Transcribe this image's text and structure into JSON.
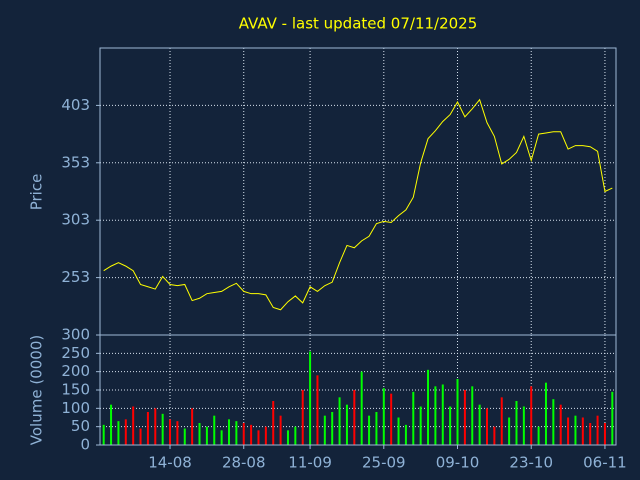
{
  "title": "AVAV - last updated 07/11/2025",
  "chart_data": [
    {
      "type": "line",
      "ylabel": "Price",
      "color": "#ffff00",
      "grid": true,
      "categories": [
        null,
        null,
        null,
        null,
        null,
        null,
        null,
        null,
        null,
        "14-08",
        null,
        null,
        null,
        null,
        null,
        null,
        null,
        null,
        null,
        "28-08",
        null,
        null,
        null,
        null,
        null,
        null,
        null,
        null,
        "11-09",
        null,
        null,
        null,
        null,
        null,
        null,
        null,
        null,
        null,
        "25-09",
        null,
        null,
        null,
        null,
        null,
        null,
        null,
        null,
        null,
        "09-10",
        null,
        null,
        null,
        null,
        null,
        null,
        null,
        null,
        null,
        "23-10",
        null,
        null,
        null,
        null,
        null,
        null,
        null,
        null,
        null,
        "06-11",
        null
      ],
      "values": [
        259,
        263,
        266,
        263,
        259,
        247,
        245,
        243,
        254,
        247,
        246,
        247,
        233,
        235,
        239,
        240,
        241,
        245,
        248,
        241,
        239,
        239,
        238,
        227,
        225,
        232,
        237,
        231,
        245,
        241,
        246,
        249,
        266,
        281,
        279,
        285,
        289,
        300,
        302,
        301,
        307,
        312,
        323,
        353,
        374,
        381,
        389,
        395,
        406,
        393,
        400,
        408,
        388,
        376,
        352,
        356,
        362,
        376,
        355,
        378,
        379,
        380,
        380,
        365,
        368,
        368,
        367,
        363,
        328,
        331
      ],
      "ylim": [
        203,
        453
      ],
      "yticks": [
        253,
        303,
        353,
        403
      ]
    },
    {
      "type": "bar",
      "ylabel": "Volume (0000)",
      "grid": true,
      "values": [
        55,
        110,
        65,
        70,
        105,
        45,
        90,
        100,
        85,
        70,
        65,
        45,
        100,
        60,
        50,
        80,
        40,
        70,
        65,
        60,
        55,
        40,
        50,
        120,
        80,
        40,
        50,
        150,
        255,
        190,
        80,
        90,
        130,
        110,
        150,
        200,
        80,
        90,
        155,
        140,
        75,
        55,
        145,
        105,
        205,
        160,
        165,
        105,
        180,
        150,
        160,
        110,
        100,
        50,
        130,
        75,
        120,
        105,
        160,
        50,
        170,
        125,
        110,
        75,
        80,
        75,
        60,
        80,
        60,
        145
      ],
      "colors": [
        "#00ff00",
        "#00ff00",
        "#00ff00",
        "#ff0000",
        "#ff0000",
        "#ff0000",
        "#ff0000",
        "#ff0000",
        "#00ff00",
        "#ff0000",
        "#ff0000",
        "#00ff00",
        "#ff0000",
        "#00ff00",
        "#00ff00",
        "#00ff00",
        "#00ff00",
        "#00ff00",
        "#00ff00",
        "#ff0000",
        "#ff0000",
        "#ff0000",
        "#ff0000",
        "#ff0000",
        "#ff0000",
        "#00ff00",
        "#00ff00",
        "#ff0000",
        "#00ff00",
        "#ff0000",
        "#00ff00",
        "#00ff00",
        "#00ff00",
        "#00ff00",
        "#ff0000",
        "#00ff00",
        "#00ff00",
        "#00ff00",
        "#00ff00",
        "#ff0000",
        "#00ff00",
        "#00ff00",
        "#00ff00",
        "#00ff00",
        "#00ff00",
        "#00ff00",
        "#00ff00",
        "#00ff00",
        "#00ff00",
        "#ff0000",
        "#00ff00",
        "#00ff00",
        "#ff0000",
        "#ff0000",
        "#ff0000",
        "#00ff00",
        "#00ff00",
        "#00ff00",
        "#ff0000",
        "#00ff00",
        "#00ff00",
        "#00ff00",
        "#ff0000",
        "#ff0000",
        "#00ff00",
        "#ff0000",
        "#ff0000",
        "#ff0000",
        "#ff0000",
        "#00ff00"
      ],
      "ylim": [
        0,
        300
      ],
      "yticks": [
        0,
        50,
        100,
        150,
        200,
        250,
        300
      ]
    }
  ]
}
